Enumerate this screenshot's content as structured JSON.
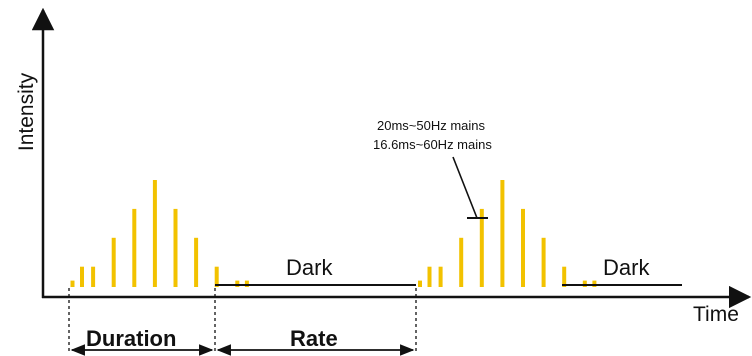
{
  "diagram": {
    "y_axis_label": "Intensity",
    "x_axis_label": "Time",
    "dark_label_1": "Dark",
    "dark_label_2": "Dark",
    "mains_note_line1": "20ms~50Hz mains",
    "mains_note_line2": "16.6ms~60Hz mains",
    "duration_label": "Duration",
    "rate_label": "Rate",
    "pulse_color": "#f2c200",
    "burst_relative_heights": [
      0.06,
      0.19,
      0.46,
      0.73,
      1.0,
      0.73,
      0.46,
      0.19,
      0.06
    ]
  }
}
